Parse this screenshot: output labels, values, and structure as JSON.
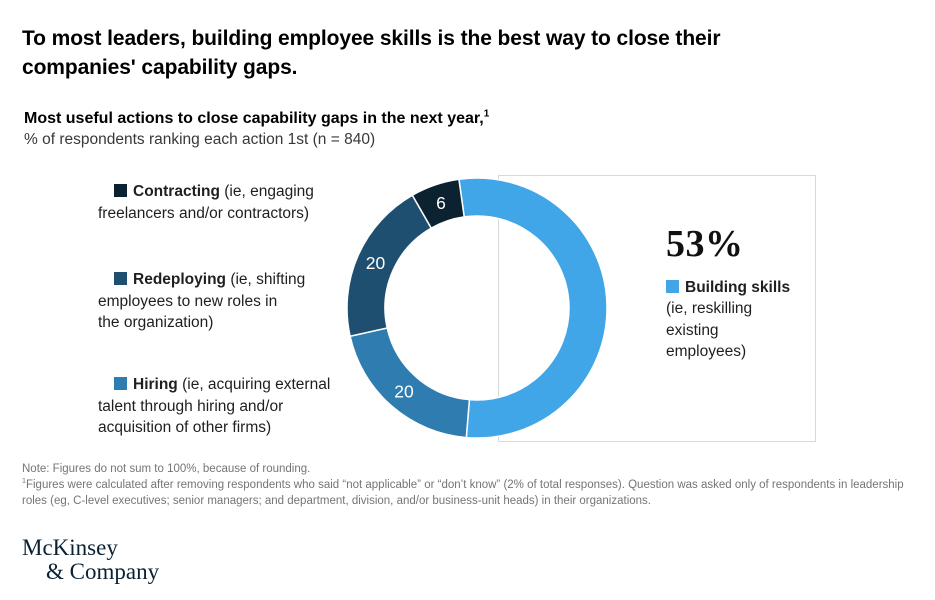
{
  "title": "To most leaders, building employee skills is the best way to close their companies' capability gaps.",
  "subtitle": {
    "bold_text": "Most useful actions to close capability gaps in the next year,",
    "sup": "1",
    "line2": "% of respondents ranking each action 1st (n = 840)"
  },
  "legend": [
    {
      "name": "Contracting",
      "line1_rest": " (ie, engaging",
      "more_lines": [
        "freelancers and/or contractors)"
      ],
      "color": "#0d2231"
    },
    {
      "name": "Redeploying",
      "line1_rest": " (ie, shifting",
      "more_lines": [
        "employees to new roles in",
        "the organization)"
      ],
      "color": "#1e4f70"
    },
    {
      "name": "Hiring",
      "line1_rest": " (ie, acquiring external",
      "more_lines": [
        "talent through hiring and/or",
        "acquisition of other firms)"
      ],
      "color": "#2e7cb0"
    }
  ],
  "highlight": {
    "value": "53%",
    "name": "Building skills",
    "desc_lines": [
      "(ie, reskilling",
      "existing",
      "employees)"
    ],
    "color": "#41a6e8"
  },
  "chart_data": {
    "type": "pie",
    "donut": true,
    "title": "Most useful actions to close capability gaps in the next year",
    "subtitle": "% of respondents ranking each action 1st (n = 840)",
    "n": 840,
    "start_angle_deg": -8,
    "direction": "clockwise",
    "legend_position": "left-and-right",
    "segments": [
      {
        "label": "Building skills (ie, reskilling existing employees)",
        "value": 53,
        "color": "#41a6e8",
        "value_label": "53%",
        "value_label_position": "outside"
      },
      {
        "label": "Hiring (ie, acquiring external talent through hiring and/or acquisition of other firms)",
        "value": 20,
        "color": "#2e7cb0",
        "value_label": "20",
        "value_label_position": "inside"
      },
      {
        "label": "Redeploying (ie, shifting employees to new roles in the organization)",
        "value": 20,
        "color": "#1e4f70",
        "value_label": "20",
        "value_label_position": "inside"
      },
      {
        "label": "Contracting (ie, engaging freelancers and/or contractors)",
        "value": 6,
        "color": "#0d2231",
        "value_label": "6",
        "value_label_position": "inside"
      }
    ]
  },
  "note": {
    "line1": "Note: Figures do not sum to 100%, because of rounding.",
    "footnote_sup": "1",
    "line2": "Figures were calculated after removing respondents who said “not applicable” or “don’t know” (2% of total responses). Question was asked only of respondents in leadership roles (eg, C-level executives; senior managers; and department, division, and/or business-unit heads) in their organizations."
  },
  "logo": {
    "line1": "McKinsey",
    "line2": "& Company"
  }
}
